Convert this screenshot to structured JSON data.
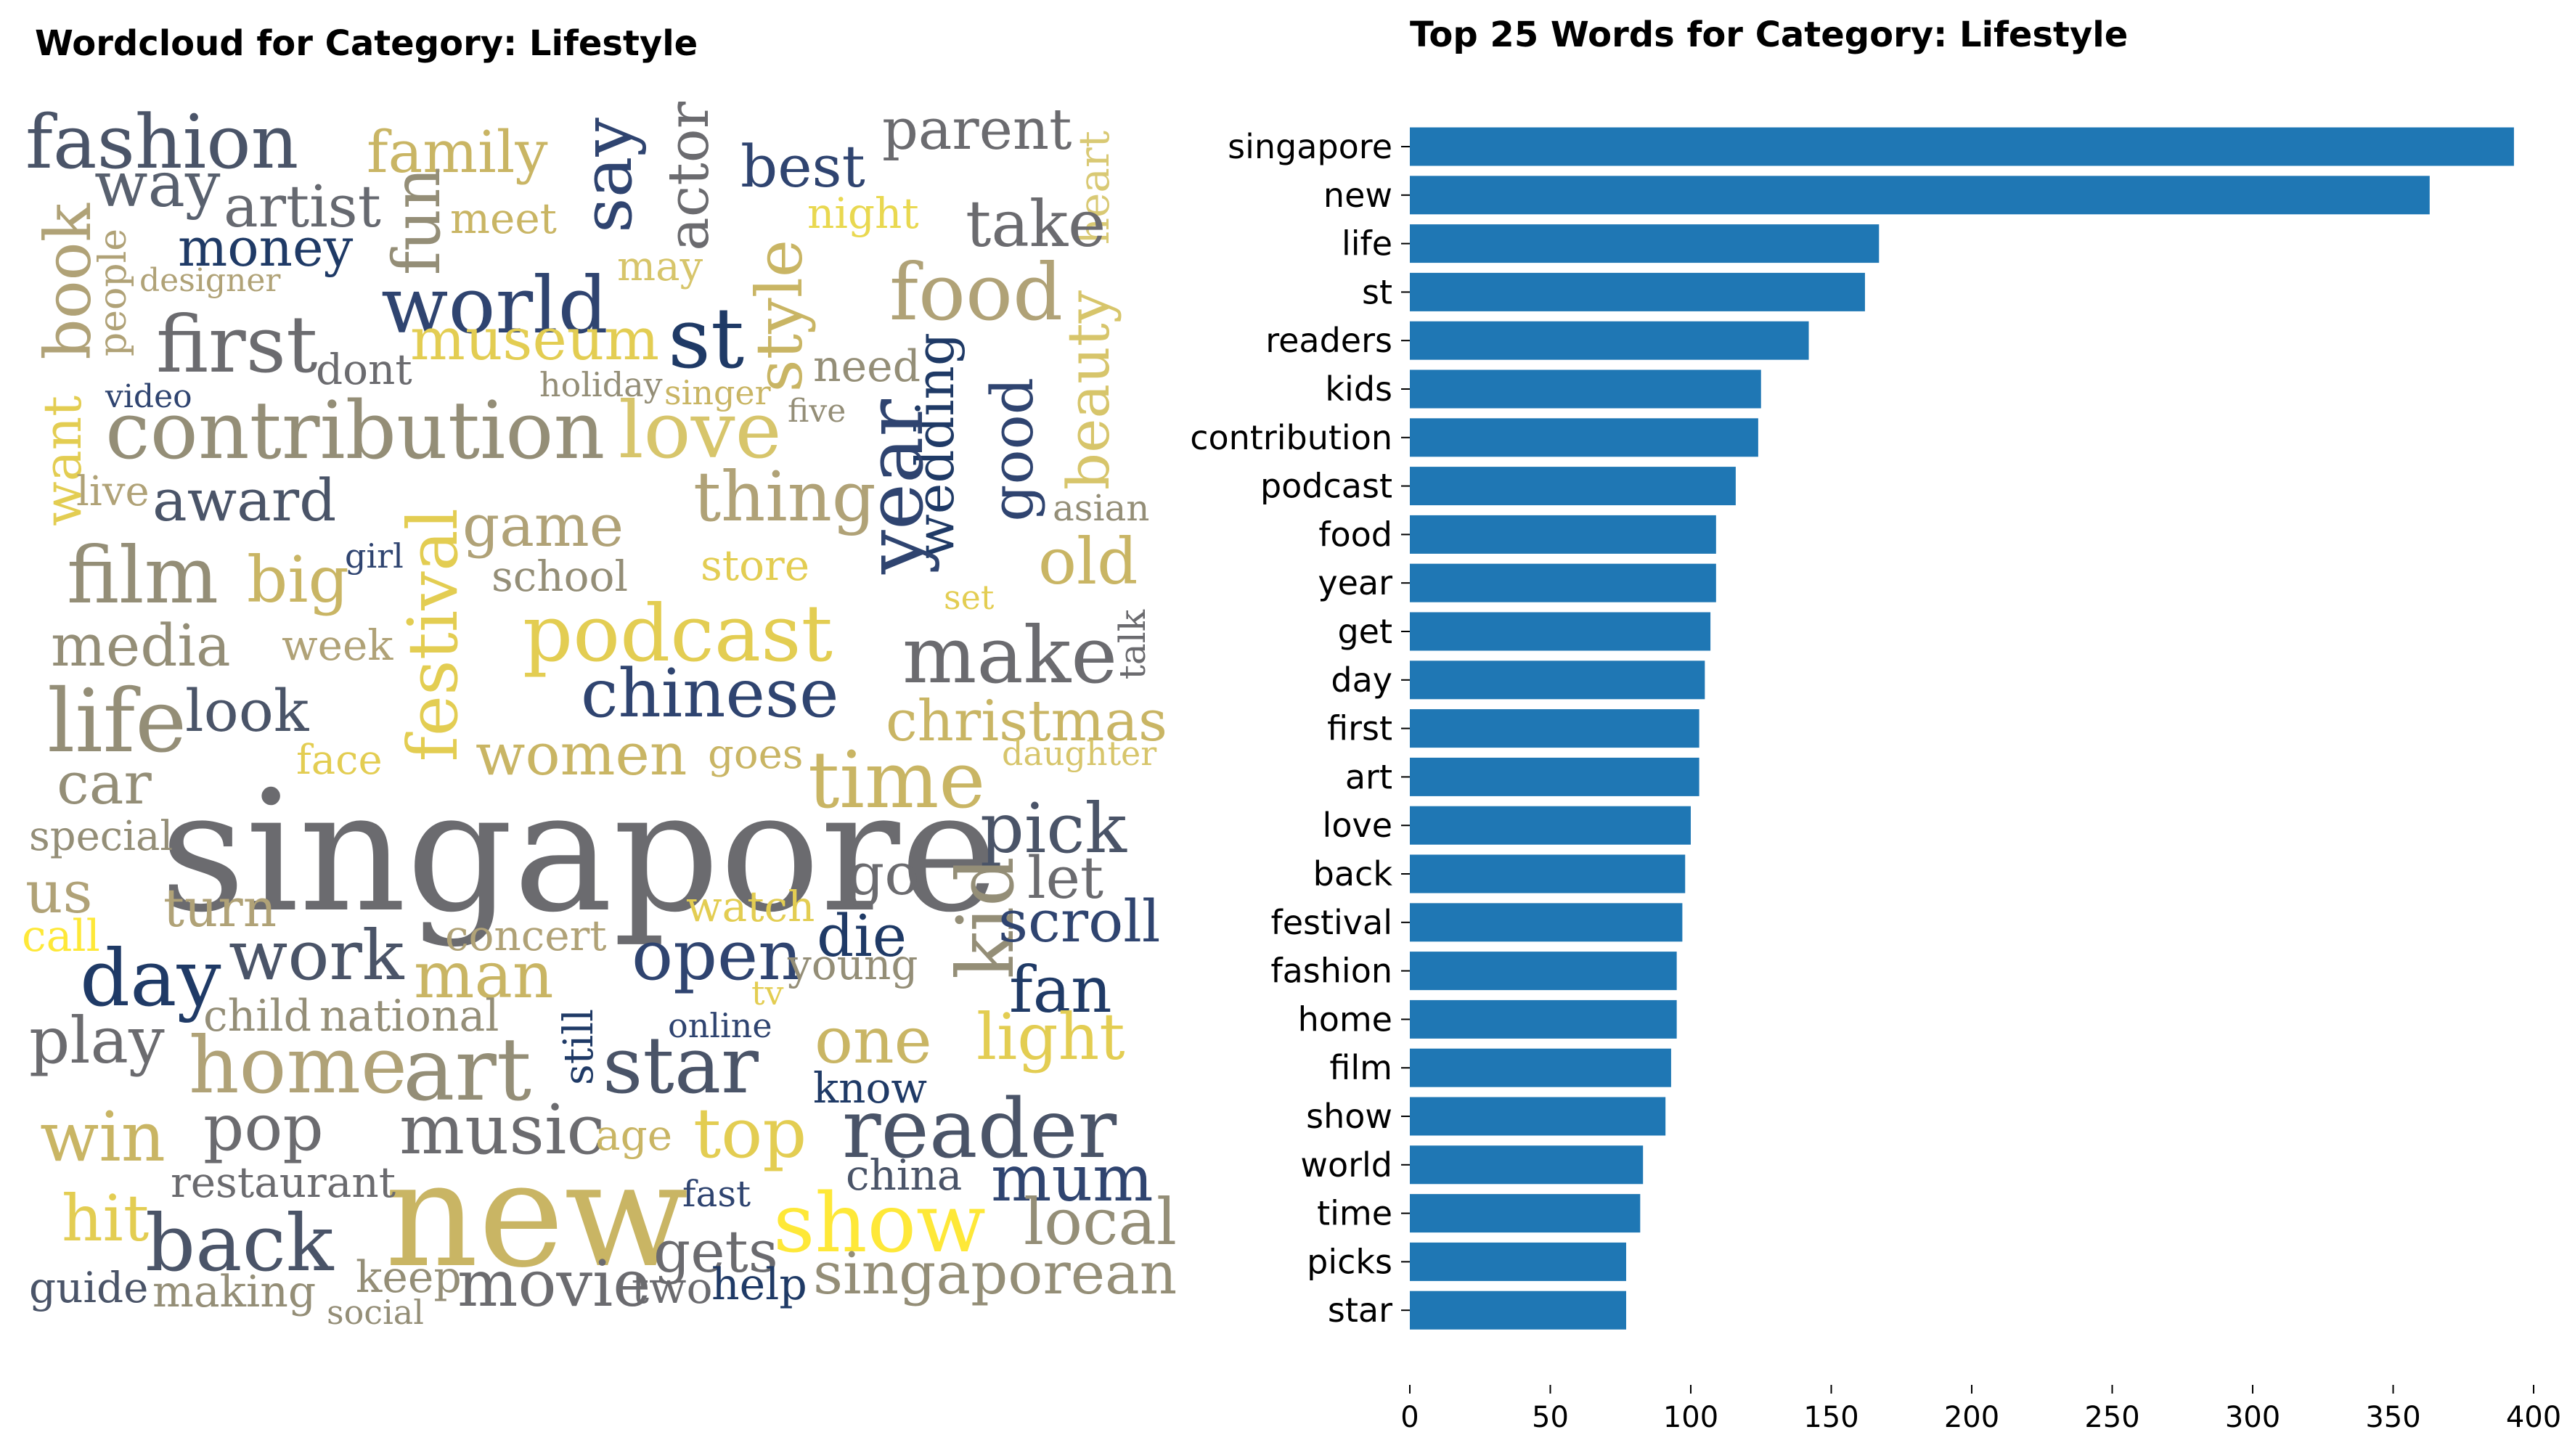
{
  "wordcloud": {
    "title": "Wordcloud for Category: Lifestyle",
    "palette": [
      "#00224e",
      "#35456c",
      "#666970",
      "#948e77",
      "#c8b866",
      "#fee838"
    ],
    "words": [
      {
        "text": "singapore",
        "color": "#6b6b6f"
      },
      {
        "text": "new",
        "color": "#c9b564"
      },
      {
        "text": "fashion",
        "color": "#4a5468"
      },
      {
        "text": "way",
        "color": "#58606e"
      },
      {
        "text": "artist",
        "color": "#666970"
      },
      {
        "text": "money",
        "color": "#1f3a66"
      },
      {
        "text": "family",
        "color": "#c9b564"
      },
      {
        "text": "meet",
        "color": "#c9b564"
      },
      {
        "text": "fun",
        "color": "#948e77"
      },
      {
        "text": "say",
        "color": "#2f4470"
      },
      {
        "text": "actor",
        "color": "#6b6b6f"
      },
      {
        "text": "best",
        "color": "#2f4470"
      },
      {
        "text": "parent",
        "color": "#6b6b6f"
      },
      {
        "text": "night",
        "color": "#e9d850"
      },
      {
        "text": "heart",
        "color": "#d9c974"
      },
      {
        "text": "book",
        "color": "#b0a277"
      },
      {
        "text": "people",
        "color": "#b0a277"
      },
      {
        "text": "designer",
        "color": "#b0a277"
      },
      {
        "text": "may",
        "color": "#d7c56b"
      },
      {
        "text": "take",
        "color": "#6b6b6f"
      },
      {
        "text": "world",
        "color": "#2f4470"
      },
      {
        "text": "style",
        "color": "#c9b564"
      },
      {
        "text": "food",
        "color": "#b0a277"
      },
      {
        "text": "first",
        "color": "#6b6b6f"
      },
      {
        "text": "dont",
        "color": "#6b6b6f"
      },
      {
        "text": "museum",
        "color": "#e3cd52"
      },
      {
        "text": "st",
        "color": "#1f3a66"
      },
      {
        "text": "need",
        "color": "#948e77"
      },
      {
        "text": "beauty",
        "color": "#d7c56b"
      },
      {
        "text": "video",
        "color": "#2f4470"
      },
      {
        "text": "holiday",
        "color": "#948e77"
      },
      {
        "text": "singer",
        "color": "#c9b564"
      },
      {
        "text": "wedding",
        "color": "#1f3a66"
      },
      {
        "text": "five",
        "color": "#948e77"
      },
      {
        "text": "good",
        "color": "#2f4470"
      },
      {
        "text": "contribution",
        "color": "#948e77"
      },
      {
        "text": "love",
        "color": "#d7c56b"
      },
      {
        "text": "want",
        "color": "#e3cd52"
      },
      {
        "text": "live",
        "color": "#b0a277"
      },
      {
        "text": "award",
        "color": "#4a5468"
      },
      {
        "text": "thing",
        "color": "#b0a277"
      },
      {
        "text": "year",
        "color": "#2f4470"
      },
      {
        "text": "asian",
        "color": "#948e77"
      },
      {
        "text": "game",
        "color": "#b0a277"
      },
      {
        "text": "film",
        "color": "#948e77"
      },
      {
        "text": "big",
        "color": "#c9b564"
      },
      {
        "text": "girl",
        "color": "#2f4470"
      },
      {
        "text": "festival",
        "color": "#e3cd52"
      },
      {
        "text": "school",
        "color": "#948e77"
      },
      {
        "text": "store",
        "color": "#e3cd52"
      },
      {
        "text": "old",
        "color": "#c9b564"
      },
      {
        "text": "media",
        "color": "#948e77"
      },
      {
        "text": "week",
        "color": "#b0a277"
      },
      {
        "text": "podcast",
        "color": "#e3cd52"
      },
      {
        "text": "set",
        "color": "#e3cd52"
      },
      {
        "text": "make",
        "color": "#6b6b6f"
      },
      {
        "text": "talk",
        "color": "#6b6b6f"
      },
      {
        "text": "life",
        "color": "#948e77"
      },
      {
        "text": "look",
        "color": "#4a5468"
      },
      {
        "text": "chinese",
        "color": "#2f4470"
      },
      {
        "text": "christmas",
        "color": "#c9b564"
      },
      {
        "text": "face",
        "color": "#e3cd52"
      },
      {
        "text": "women",
        "color": "#c9b564"
      },
      {
        "text": "goes",
        "color": "#c9b564"
      },
      {
        "text": "daughter",
        "color": "#d7c56b"
      },
      {
        "text": "car",
        "color": "#948e77"
      },
      {
        "text": "time",
        "color": "#c9b564"
      },
      {
        "text": "pick",
        "color": "#4a5468"
      },
      {
        "text": "special",
        "color": "#948e77"
      },
      {
        "text": "go",
        "color": "#6b6b6f"
      },
      {
        "text": "let",
        "color": "#6b6b6f"
      },
      {
        "text": "us",
        "color": "#b0a277"
      },
      {
        "text": "turn",
        "color": "#b0a277"
      },
      {
        "text": "kid",
        "color": "#948e77"
      },
      {
        "text": "watch",
        "color": "#e3cd52"
      },
      {
        "text": "scroll",
        "color": "#2f4470"
      },
      {
        "text": "call",
        "color": "#fee838"
      },
      {
        "text": "concert",
        "color": "#b0a277"
      },
      {
        "text": "die",
        "color": "#1f3a66"
      },
      {
        "text": "day",
        "color": "#1f3a66"
      },
      {
        "text": "work",
        "color": "#4a5468"
      },
      {
        "text": "man",
        "color": "#c9b564"
      },
      {
        "text": "open",
        "color": "#2f4470"
      },
      {
        "text": "young",
        "color": "#948e77"
      },
      {
        "text": "fan",
        "color": "#1f3a66"
      },
      {
        "text": "tv",
        "color": "#e3cd52"
      },
      {
        "text": "child",
        "color": "#948e77"
      },
      {
        "text": "national",
        "color": "#948e77"
      },
      {
        "text": "play",
        "color": "#6b6b6f"
      },
      {
        "text": "online",
        "color": "#2f4470"
      },
      {
        "text": "one",
        "color": "#c9b564"
      },
      {
        "text": "light",
        "color": "#e3cd52"
      },
      {
        "text": "home",
        "color": "#b0a277"
      },
      {
        "text": "art",
        "color": "#948e77"
      },
      {
        "text": "still",
        "color": "#1f3a66"
      },
      {
        "text": "star",
        "color": "#4a5468"
      },
      {
        "text": "know",
        "color": "#1f3a66"
      },
      {
        "text": "win",
        "color": "#c9b564"
      },
      {
        "text": "pop",
        "color": "#6b6b6f"
      },
      {
        "text": "music",
        "color": "#6b6b6f"
      },
      {
        "text": "age",
        "color": "#c9b564"
      },
      {
        "text": "top",
        "color": "#e3cd52"
      },
      {
        "text": "reader",
        "color": "#4a5468"
      },
      {
        "text": "restaurant",
        "color": "#6b6b6f"
      },
      {
        "text": "fast",
        "color": "#2f4470"
      },
      {
        "text": "china",
        "color": "#4a5468"
      },
      {
        "text": "mum",
        "color": "#2f4470"
      },
      {
        "text": "hit",
        "color": "#e3cd52"
      },
      {
        "text": "back",
        "color": "#4a5468"
      },
      {
        "text": "gets",
        "color": "#6b6b6f"
      },
      {
        "text": "show",
        "color": "#fee838"
      },
      {
        "text": "local",
        "color": "#948e77"
      },
      {
        "text": "guide",
        "color": "#4a5468"
      },
      {
        "text": "making",
        "color": "#948e77"
      },
      {
        "text": "keep",
        "color": "#948e77"
      },
      {
        "text": "social",
        "color": "#948e77"
      },
      {
        "text": "movie",
        "color": "#6b6b6f"
      },
      {
        "text": "two",
        "color": "#6b6b6f"
      },
      {
        "text": "help",
        "color": "#1f3a66"
      },
      {
        "text": "singaporean",
        "color": "#948e77"
      }
    ]
  },
  "chart_data": {
    "type": "bar",
    "orientation": "horizontal",
    "title": "Top 25 Words for Category: Lifestyle",
    "xlabel": "",
    "ylabel": "",
    "xlim": [
      0,
      400
    ],
    "xticks": [
      0,
      50,
      100,
      150,
      200,
      250,
      300,
      350,
      400
    ],
    "bar_color": "#1f77b4",
    "grid": false,
    "categories": [
      "singapore",
      "new",
      "life",
      "st",
      "readers",
      "kids",
      "contribution",
      "podcast",
      "food",
      "year",
      "get",
      "day",
      "first",
      "art",
      "love",
      "back",
      "festival",
      "fashion",
      "home",
      "film",
      "show",
      "world",
      "time",
      "picks",
      "star"
    ],
    "values": [
      393,
      363,
      167,
      162,
      142,
      125,
      124,
      116,
      109,
      109,
      107,
      105,
      103,
      103,
      100,
      98,
      97,
      95,
      95,
      93,
      91,
      83,
      82,
      77,
      77
    ]
  }
}
